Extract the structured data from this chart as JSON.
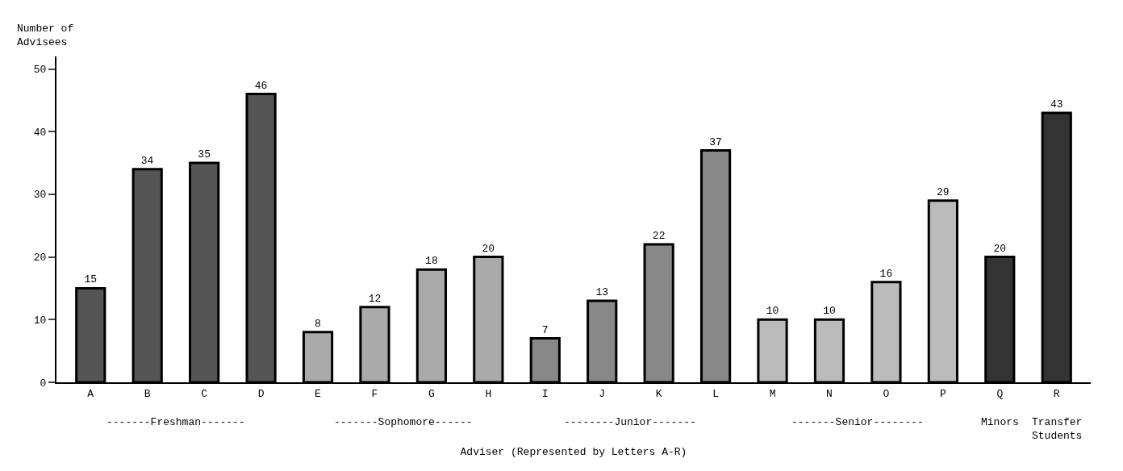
{
  "chart_data": {
    "type": "bar",
    "ylabel": "Number of Advisees",
    "xlabel": "Adviser (Represented by Letters A-R)",
    "categories": [
      "A",
      "B",
      "C",
      "D",
      "E",
      "F",
      "G",
      "H",
      "I",
      "J",
      "K",
      "L",
      "M",
      "N",
      "O",
      "P",
      "Q",
      "R"
    ],
    "values": [
      15,
      34,
      35,
      46,
      8,
      12,
      18,
      20,
      7,
      13,
      22,
      37,
      10,
      10,
      16,
      29,
      20,
      43
    ],
    "colors": [
      "#555555",
      "#555555",
      "#555555",
      "#555555",
      "#aaaaaa",
      "#aaaaaa",
      "#aaaaaa",
      "#aaaaaa",
      "#888888",
      "#888888",
      "#888888",
      "#888888",
      "#bbbbbb",
      "#bbbbbb",
      "#bbbbbb",
      "#bbbbbb",
      "#333333",
      "#333333"
    ],
    "ylim": [
      0,
      52
    ],
    "yticks": [
      0,
      10,
      20,
      30,
      40,
      50
    ],
    "grid": false,
    "data_labels": true,
    "annotations": [
      "-------Freshman-------",
      "-------Sophomore------",
      "--------Junior-------",
      "-------Senior--------",
      "Minors",
      "Transfer\nStudents"
    ]
  }
}
